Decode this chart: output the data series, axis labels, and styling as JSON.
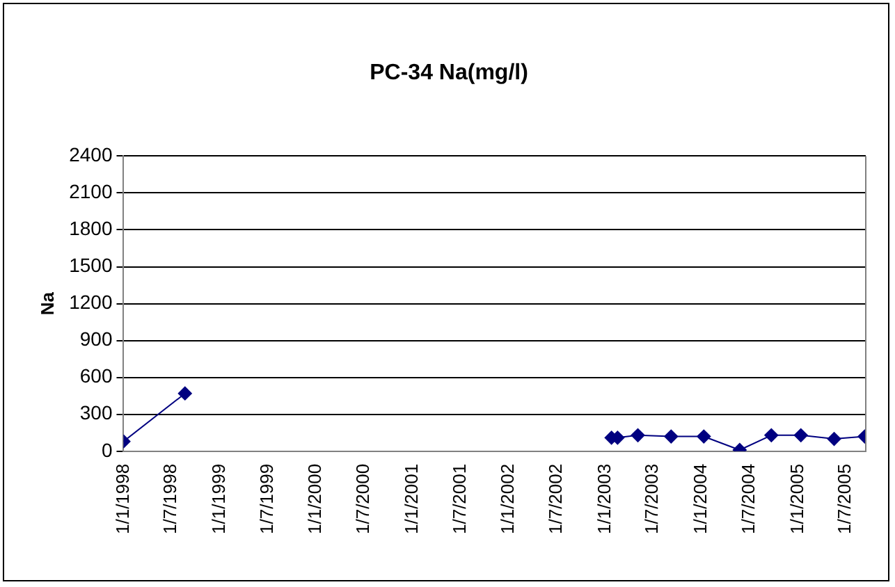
{
  "chart_data": {
    "type": "line",
    "title": "PC-34 Na(mg/l)",
    "ylabel": "Na",
    "series": [
      {
        "color": "#000080",
        "x": [
          "1998-01-01",
          "1998-08-22"
        ],
        "values": [
          80,
          470
        ]
      },
      {
        "color": "#000080",
        "x": [
          "2003-01-25",
          "2003-02-17",
          "2003-05-05",
          "2003-09-08",
          "2004-01-10",
          "2004-05-25",
          "2004-09-22",
          "2005-01-12",
          "2005-05-18",
          "2005-09-11"
        ],
        "values": [
          110,
          110,
          130,
          120,
          120,
          10,
          130,
          130,
          100,
          120
        ]
      }
    ],
    "xlim": [
      "1998-01-01",
      "2005-09-15"
    ],
    "xticks": [
      {
        "value": "1998-01-01",
        "label": "1/1/1998"
      },
      {
        "value": "1998-07-01",
        "label": "1/7/1998"
      },
      {
        "value": "1999-01-01",
        "label": "1/1/1999"
      },
      {
        "value": "1999-07-01",
        "label": "1/7/1999"
      },
      {
        "value": "2000-01-01",
        "label": "1/1/2000"
      },
      {
        "value": "2000-07-01",
        "label": "1/7/2000"
      },
      {
        "value": "2001-01-01",
        "label": "1/1/2001"
      },
      {
        "value": "2001-07-01",
        "label": "1/7/2001"
      },
      {
        "value": "2002-01-01",
        "label": "1/1/2002"
      },
      {
        "value": "2002-07-01",
        "label": "1/7/2002"
      },
      {
        "value": "2003-01-01",
        "label": "1/1/2003"
      },
      {
        "value": "2003-07-01",
        "label": "1/7/2003"
      },
      {
        "value": "2004-01-01",
        "label": "1/1/2004"
      },
      {
        "value": "2004-07-01",
        "label": "1/7/2004"
      },
      {
        "value": "2005-01-01",
        "label": "1/1/2005"
      },
      {
        "value": "2005-07-01",
        "label": "1/7/2005"
      }
    ],
    "ylim": [
      0,
      2400
    ],
    "yticks": [
      0,
      300,
      600,
      900,
      1200,
      1500,
      1800,
      2100,
      2400
    ],
    "grid": "y",
    "legend": false,
    "marker": "diamond",
    "line_style": "solid"
  }
}
